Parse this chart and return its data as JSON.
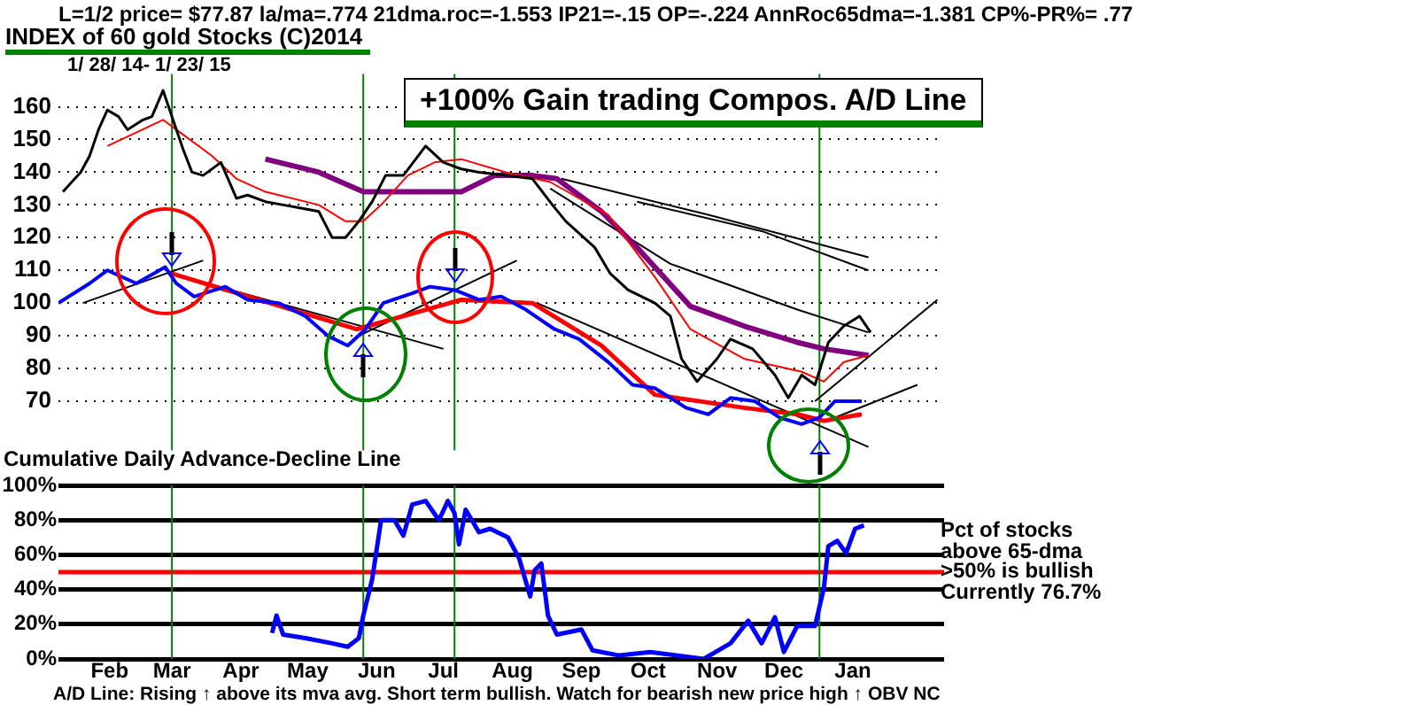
{
  "chart_data": [
    {
      "type": "line",
      "title": "L=1/2  price= $77.87  la/ma=.774 21dma.roc=-1.553 IP21=-.15 OP=-.224 AnnRoc65dma=-1.381 CP%-PR%=  .77",
      "subtitle": "INDEX of  60 gold Stocks  (C)2014",
      "annotations": [
        "1/ 28/ 14- 1/ 23/ 15",
        "+100% Gain trading Compos. A/D Line"
      ],
      "xlim": [
        "2014-01-23",
        "2015-02-25"
      ],
      "ylim": [
        55,
        170
      ],
      "yticks": [
        70,
        80,
        90,
        100,
        110,
        120,
        130,
        140,
        150,
        160
      ],
      "grid": "y",
      "tick_labels": "y",
      "legend": false,
      "ref_lines": [
        {
          "axis": "x",
          "value": "2014-03-15",
          "color": "#008000"
        },
        {
          "axis": "x",
          "value": "2014-06-09",
          "color": "#008000"
        },
        {
          "axis": "x",
          "value": "2014-07-20",
          "color": "#008000"
        },
        {
          "axis": "x",
          "value": "2014-12-31",
          "color": "#008000"
        }
      ],
      "series": [
        {
          "color": "#000000",
          "x": [
            "2014-01-25",
            "2014-02-02",
            "2014-02-06",
            "2014-02-10",
            "2014-02-14",
            "2014-02-19",
            "2014-02-23",
            "2014-03-02",
            "2014-03-06",
            "2014-03-11",
            "2014-03-15",
            "2014-03-20",
            "2014-03-24",
            "2014-03-29",
            "2014-04-06",
            "2014-04-13",
            "2014-04-18",
            "2014-04-26",
            "2014-05-04",
            "2014-05-12",
            "2014-05-20",
            "2014-05-26",
            "2014-06-01",
            "2014-06-07",
            "2014-06-13",
            "2014-06-19",
            "2014-06-27",
            "2014-07-07",
            "2014-07-15",
            "2014-07-23",
            "2014-07-31",
            "2014-08-12",
            "2014-08-24",
            "2014-09-02",
            "2014-09-08",
            "2014-09-21",
            "2014-09-28",
            "2014-10-06",
            "2014-10-18",
            "2014-10-25",
            "2014-10-30",
            "2014-11-06",
            "2014-11-15",
            "2014-11-21",
            "2014-12-01",
            "2014-12-11",
            "2014-12-17",
            "2014-12-23",
            "2014-12-29",
            "2015-01-04",
            "2015-01-11",
            "2015-01-18",
            "2015-01-23"
          ],
          "values": [
            134,
            140,
            145,
            153,
            159,
            157,
            153,
            156,
            157,
            165,
            157,
            147,
            140,
            139,
            143,
            132,
            133,
            131,
            130,
            129,
            128,
            120,
            120,
            125,
            131,
            139,
            139,
            148,
            143,
            141,
            140,
            139,
            138,
            130,
            125,
            117,
            109,
            104,
            100,
            96,
            83,
            76,
            83,
            89,
            86,
            78,
            71,
            78,
            75,
            88,
            93,
            96,
            91
          ]
        },
        {
          "color": "#ff0000",
          "x": [
            "2014-02-14",
            "2014-03-11",
            "2014-03-17",
            "2014-04-02",
            "2014-04-13",
            "2014-04-26",
            "2014-05-20",
            "2014-06-01",
            "2014-06-09",
            "2014-06-17",
            "2014-06-29",
            "2014-07-11",
            "2014-07-23",
            "2014-08-12",
            "2014-09-01",
            "2014-09-27",
            "2014-10-18",
            "2014-11-03",
            "2014-11-27",
            "2014-12-23",
            "2015-01-02",
            "2015-01-11",
            "2015-01-22"
          ],
          "values": [
            148,
            156,
            153,
            145,
            138,
            134,
            130,
            125,
            125,
            130,
            139,
            143,
            144,
            140,
            137,
            127,
            108,
            92,
            83,
            79,
            76,
            82,
            84
          ]
        },
        {
          "color": "#800080",
          "x": [
            "2014-04-26",
            "2014-05-20",
            "2014-06-09",
            "2014-06-29",
            "2014-07-23",
            "2014-08-07",
            "2014-08-24",
            "2014-09-04",
            "2014-09-24",
            "2014-10-10",
            "2014-11-03",
            "2014-11-27",
            "2014-12-21",
            "2015-01-02",
            "2015-01-22"
          ],
          "values": [
            144,
            140,
            134,
            134,
            134,
            139,
            139,
            138,
            128,
            117,
            99,
            93,
            88,
            86,
            84
          ]
        },
        {
          "color": "#0000ff",
          "x": [
            "2014-01-23",
            "2014-02-06",
            "2014-02-14",
            "2014-02-27",
            "2014-03-12",
            "2014-03-17",
            "2014-03-25",
            "2014-04-08",
            "2014-04-18",
            "2014-05-02",
            "2014-05-14",
            "2014-05-24",
            "2014-06-02",
            "2014-06-10",
            "2014-06-18",
            "2014-07-01",
            "2014-07-09",
            "2014-07-20",
            "2014-07-31",
            "2014-08-10",
            "2014-08-21",
            "2014-09-03",
            "2014-09-14",
            "2014-09-27",
            "2014-10-08",
            "2014-10-18",
            "2014-11-01",
            "2014-11-11",
            "2014-11-21",
            "2014-12-02",
            "2014-12-13",
            "2014-12-23",
            "2014-12-31",
            "2015-01-07",
            "2015-01-19"
          ],
          "values": [
            100,
            106,
            110,
            106,
            111,
            106,
            102,
            105,
            101,
            100,
            96,
            90,
            87,
            92,
            100,
            103,
            105,
            104,
            101,
            102,
            98,
            92,
            89,
            82,
            75,
            74,
            68,
            66,
            71,
            70,
            65,
            63,
            65,
            70,
            70
          ]
        },
        {
          "color": "#ff0000",
          "x": [
            "2014-03-15",
            "2014-06-06",
            "2014-07-23",
            "2014-08-24",
            "2014-09-24",
            "2014-10-18",
            "2014-11-27",
            "2014-12-21",
            "2015-01-02",
            "2015-01-19"
          ],
          "values": [
            109,
            92,
            101,
            100,
            87,
            72,
            68,
            66,
            64,
            66
          ]
        },
        {
          "color": "#000000",
          "x": [
            "2014-09-06",
            "2014-11-11",
            "2015-01-22"
          ],
          "values": [
            138,
            127,
            114
          ]
        },
        {
          "color": "#000000",
          "x": [
            "2014-10-10",
            "2014-12-05",
            "2015-01-22"
          ],
          "values": [
            131,
            122,
            110
          ]
        },
        {
          "color": "#000000",
          "x": [
            "2014-09-01",
            "2014-10-25",
            "2014-12-21",
            "2015-01-22"
          ],
          "values": [
            135,
            112,
            98,
            91
          ]
        },
        {
          "color": "#000000",
          "x": [
            "2014-02-03",
            "2014-03-29"
          ],
          "values": [
            100,
            113
          ]
        },
        {
          "color": "#000000",
          "x": [
            "2014-03-15",
            "2014-07-15"
          ],
          "values": [
            109,
            86
          ]
        },
        {
          "color": "#000000",
          "x": [
            "2014-06-07",
            "2014-08-17"
          ],
          "values": [
            90,
            113
          ]
        },
        {
          "color": "#000000",
          "x": [
            "2014-08-26",
            "2015-01-22"
          ],
          "values": [
            100,
            56
          ]
        },
        {
          "color": "#000000",
          "x": [
            "2014-12-29",
            "2015-02-22"
          ],
          "values": [
            70,
            101
          ]
        },
        {
          "color": "#000000",
          "x": [
            "2015-01-07",
            "2015-02-13"
          ],
          "values": [
            65,
            75
          ]
        }
      ]
    },
    {
      "type": "line",
      "title": "Cumulative Daily Advance-Decline Line",
      "annotations": [
        "Pct of stocks",
        "above 65-dma",
        ">50% is bullish",
        "Currently  76.7%",
        "A/D Line: Rising ↑ above its mva avg. Short term bullish. Watch for bearish new price high ↑ OBV NC"
      ],
      "xlim": [
        "2014-01-23",
        "2015-02-25"
      ],
      "xticks": [
        {
          "value": "2014-02-15",
          "label": "Feb"
        },
        {
          "value": "2014-03-15",
          "label": "Mar"
        },
        {
          "value": "2014-04-15",
          "label": "Apr"
        },
        {
          "value": "2014-05-15",
          "label": "May"
        },
        {
          "value": "2014-06-15",
          "label": "Jun"
        },
        {
          "value": "2014-07-15",
          "label": "Jul"
        },
        {
          "value": "2014-08-15",
          "label": "Aug"
        },
        {
          "value": "2014-09-15",
          "label": "Sep"
        },
        {
          "value": "2014-10-15",
          "label": "Oct"
        },
        {
          "value": "2014-11-15",
          "label": "Nov"
        },
        {
          "value": "2014-12-15",
          "label": "Dec"
        },
        {
          "value": "2015-01-15",
          "label": "Jan"
        }
      ],
      "ylim": [
        0,
        100
      ],
      "yticks": [
        {
          "value": 0,
          "label": "0%"
        },
        {
          "value": 20,
          "label": "20%"
        },
        {
          "value": 40,
          "label": "40%"
        },
        {
          "value": 60,
          "label": "60%"
        },
        {
          "value": 80,
          "label": "80%"
        },
        {
          "value": 100,
          "label": "100%"
        }
      ],
      "grid": "y",
      "legend": false,
      "ref_lines": [
        {
          "axis": "y",
          "value": 50,
          "color": "#ff0000"
        },
        {
          "axis": "x",
          "value": "2014-03-15",
          "color": "#008000"
        },
        {
          "axis": "x",
          "value": "2014-06-09",
          "color": "#008000"
        },
        {
          "axis": "x",
          "value": "2014-07-20",
          "color": "#008000"
        },
        {
          "axis": "x",
          "value": "2014-12-31",
          "color": "#008000"
        }
      ],
      "series": [
        {
          "color": "#0000ff",
          "x": [
            "2014-04-29",
            "2014-05-01",
            "2014-05-04",
            "2014-05-14",
            "2014-05-26",
            "2014-06-02",
            "2014-06-07",
            "2014-06-09",
            "2014-06-13",
            "2014-06-17",
            "2014-06-23",
            "2014-06-27",
            "2014-07-01",
            "2014-07-07",
            "2014-07-13",
            "2014-07-17",
            "2014-07-20",
            "2014-07-22",
            "2014-07-25",
            "2014-07-31",
            "2014-08-05",
            "2014-08-13",
            "2014-08-18",
            "2014-08-23",
            "2014-08-25",
            "2014-08-28",
            "2014-08-31",
            "2014-09-04",
            "2014-09-15",
            "2014-09-20",
            "2014-10-02",
            "2014-10-16",
            "2014-11-09",
            "2014-11-21",
            "2014-11-29",
            "2014-12-05",
            "2014-12-11",
            "2014-12-15",
            "2014-12-21",
            "2014-12-29",
            "2015-01-02",
            "2015-01-04",
            "2015-01-08",
            "2015-01-12",
            "2015-01-16",
            "2015-01-20"
          ],
          "values": [
            15,
            25,
            14,
            12,
            9,
            7,
            12,
            25,
            46,
            80,
            80,
            71,
            89,
            91,
            80,
            91,
            84,
            66,
            86,
            73,
            75,
            70,
            58,
            36,
            51,
            55,
            25,
            14,
            17,
            5,
            2,
            4,
            0,
            9,
            22,
            9,
            24,
            4,
            19,
            19,
            41,
            65,
            68,
            61,
            75,
            77
          ]
        }
      ]
    }
  ]
}
